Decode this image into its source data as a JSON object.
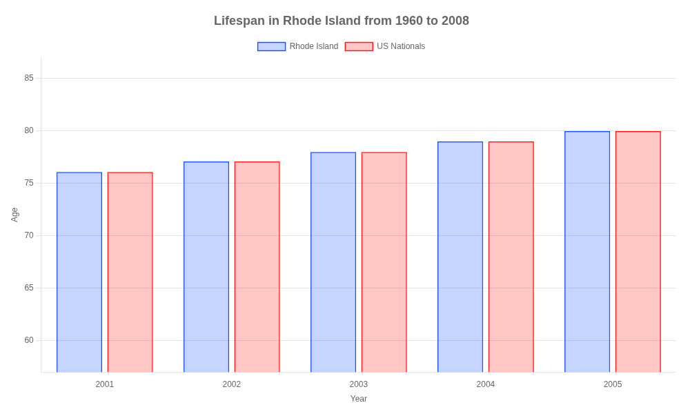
{
  "chart_data": {
    "type": "bar",
    "title": "Lifespan in Rhode Island from 1960 to 2008",
    "xlabel": "Year",
    "ylabel": "Age",
    "categories": [
      "2001",
      "2002",
      "2003",
      "2004",
      "2005"
    ],
    "series": [
      {
        "name": "Rhode Island",
        "color": "#1a56ff",
        "values": [
          76.1,
          77.1,
          78.0,
          79.0,
          80.0
        ]
      },
      {
        "name": "US Nationals",
        "color": "#ff1a1a",
        "values": [
          76.1,
          77.1,
          78.0,
          79.0,
          80.0
        ]
      }
    ],
    "ylim": [
      57,
      87
    ],
    "yticks": [
      60,
      65,
      70,
      75,
      80,
      85
    ],
    "grid": true,
    "legend": "top"
  }
}
